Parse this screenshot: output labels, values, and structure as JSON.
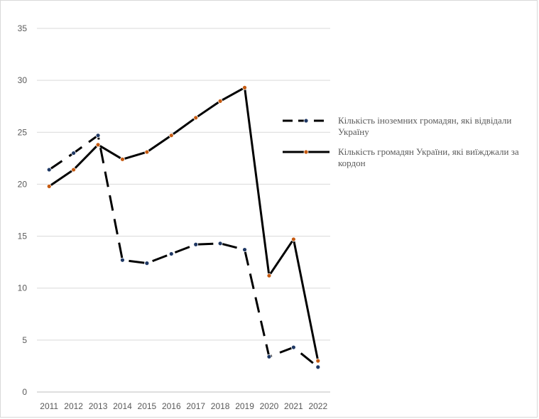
{
  "chart_data": {
    "type": "line",
    "x": [
      2011,
      2012,
      2013,
      2014,
      2015,
      2016,
      2017,
      2018,
      2019,
      2020,
      2021,
      2022
    ],
    "ylim": [
      0,
      35
    ],
    "yticks": [
      0,
      5,
      10,
      15,
      20,
      25,
      30,
      35
    ],
    "grid": true,
    "legend_position": "right",
    "series": [
      {
        "name": "Кількість іноземних громадян, які відвідали Україну",
        "style": "dashed",
        "line_color": "#000000",
        "marker_color": "#1f3864",
        "values": [
          21.4,
          23.0,
          24.7,
          12.7,
          12.4,
          13.3,
          14.2,
          14.3,
          13.7,
          3.4,
          4.3,
          2.4
        ]
      },
      {
        "name": "Кількість громадян України, які виїжджали за кордон",
        "style": "solid",
        "line_color": "#000000",
        "marker_color": "#c55a11",
        "values": [
          19.8,
          21.4,
          23.8,
          22.4,
          23.1,
          24.7,
          26.4,
          28.0,
          29.3,
          11.2,
          14.7,
          3.0
        ]
      }
    ]
  }
}
